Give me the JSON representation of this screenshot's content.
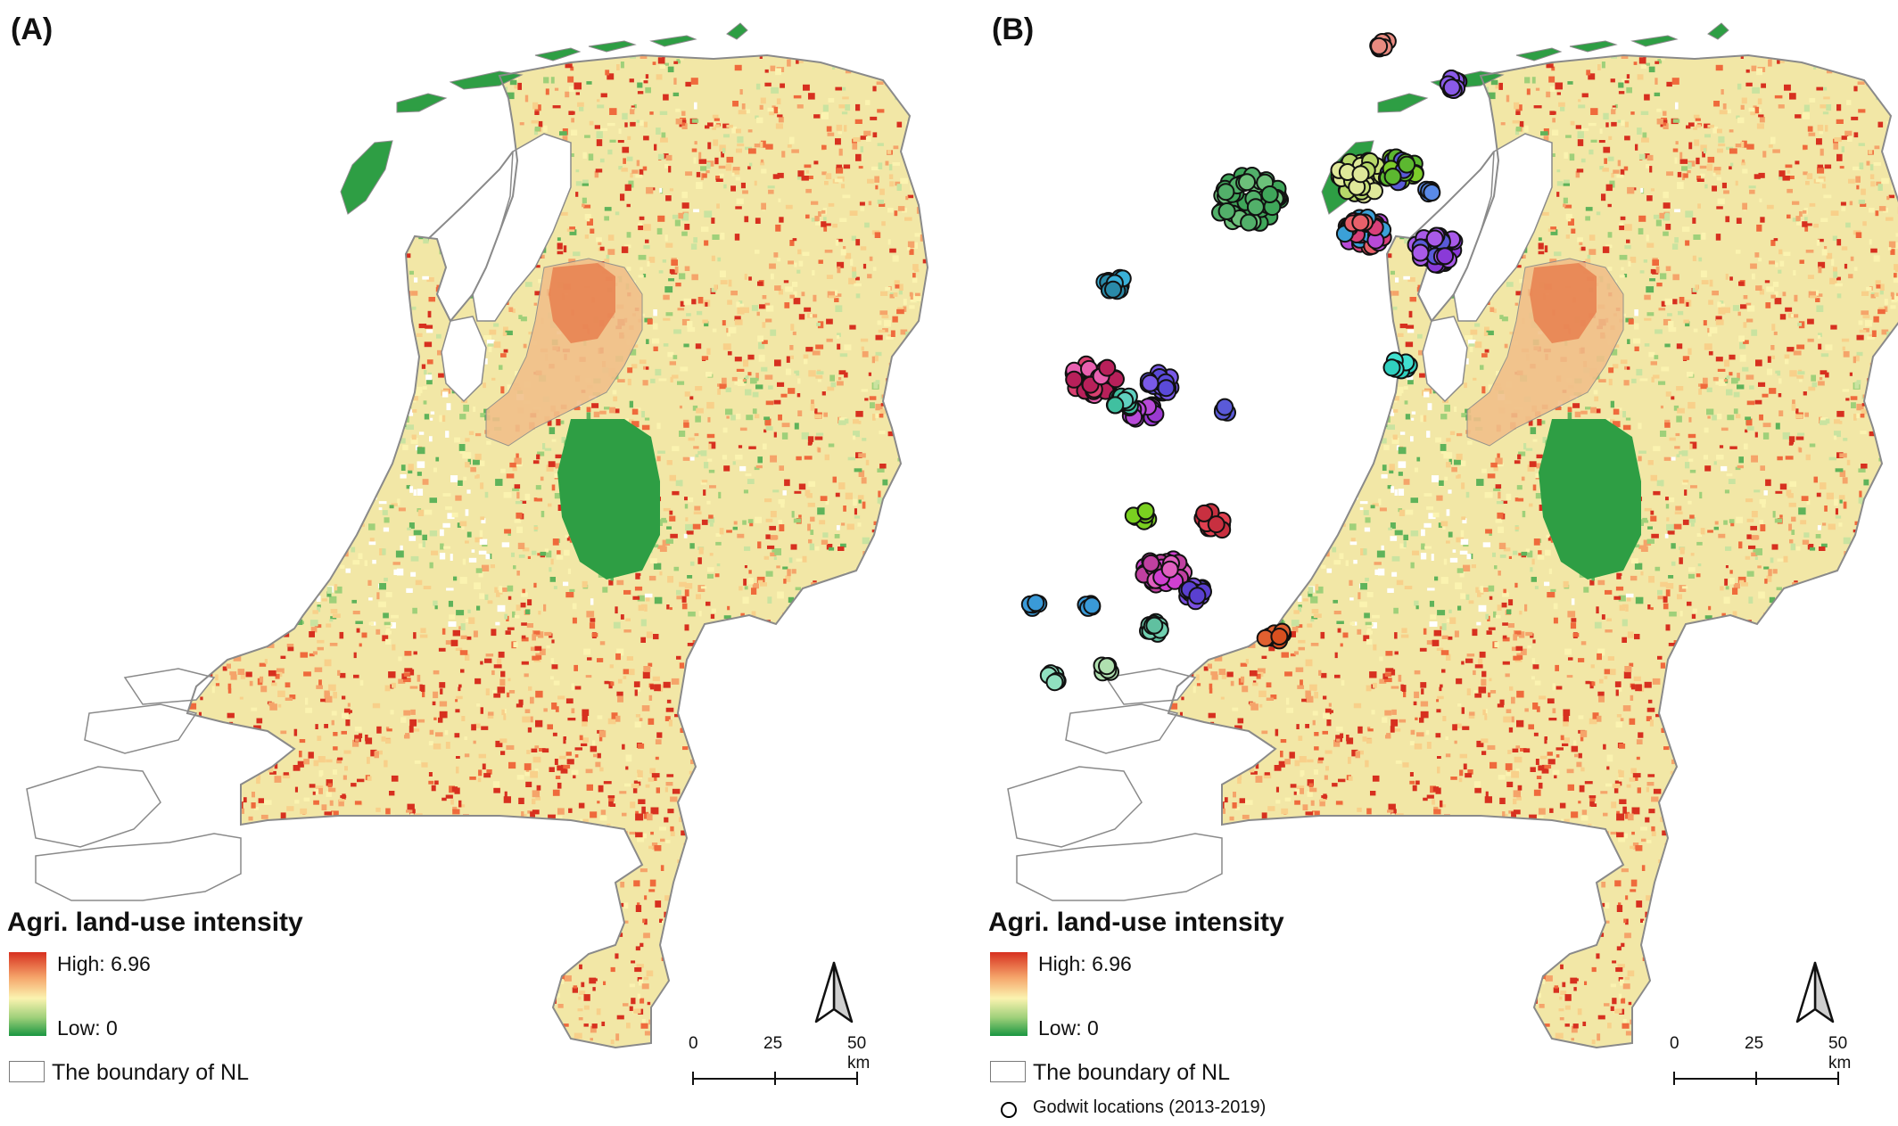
{
  "panels": [
    {
      "id": "A",
      "label": "(A)",
      "legend_title": "Agri. land-use intensity",
      "high_label": "High: 6.96",
      "low_label": "Low: 0",
      "boundary_label": "The boundary of NL",
      "scale": {
        "ticks": [
          "0",
          "25",
          "50 km"
        ]
      },
      "show_godwits": false
    },
    {
      "id": "B",
      "label": "(B)",
      "legend_title": "Agri. land-use intensity",
      "high_label": "High: 6.96",
      "low_label": "Low: 0",
      "boundary_label": "The boundary of NL",
      "godwit_label": "Godwit locations (2013-2019)",
      "scale": {
        "ticks": [
          "0",
          "25",
          "50 km"
        ]
      },
      "show_godwits": true
    }
  ],
  "colors": {
    "high": "#d7301f",
    "mid": "#fbf3b0",
    "low": "#1a9641",
    "boundary": "#8a8a8a",
    "water": "#ffffff",
    "forest": "#2e9e44"
  },
  "icons": {
    "north_arrow": "north-arrow-icon"
  }
}
